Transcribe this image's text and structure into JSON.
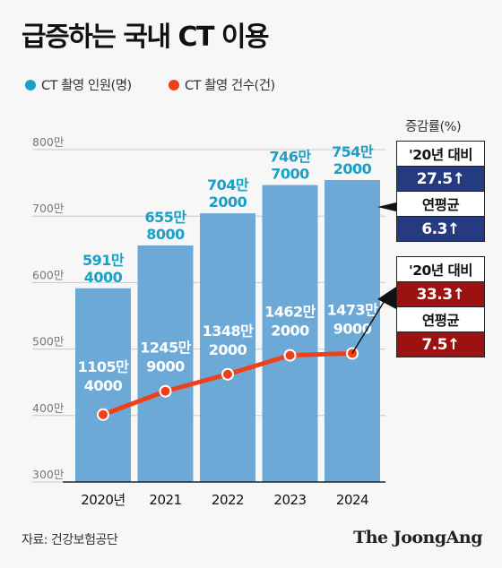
{
  "title": "급증하는 국내 CT 이용",
  "legend": [
    {
      "label": "CT 촬영 인원(명)",
      "color": "#1aa0c8"
    },
    {
      "label": "CT 촬영 건수(건)",
      "color": "#f0401a"
    }
  ],
  "rate_header": "증감률(%)",
  "boxes": {
    "people": {
      "label1": "'20년 대비",
      "value1": "27.5↑",
      "label2": "연평균",
      "value2": "6.3↑"
    },
    "exams": {
      "label1": "'20년 대비",
      "value1": "33.3↑",
      "label2": "연평균",
      "value2": "7.5↑"
    }
  },
  "source": "자료: 건강보험공단",
  "brand": "The JoongAng",
  "chart_data": {
    "type": "bar",
    "categories": [
      "2020년",
      "2021",
      "2022",
      "2023",
      "2024"
    ],
    "ylim": [
      3000000,
      8000000
    ],
    "yticks": [
      {
        "value": 8000000,
        "label": "800만"
      },
      {
        "value": 7000000,
        "label": "700만"
      },
      {
        "value": 6000000,
        "label": "600만"
      },
      {
        "value": 5000000,
        "label": "500만"
      },
      {
        "value": 4000000,
        "label": "400만"
      },
      {
        "value": 3000000,
        "label": "300만"
      }
    ],
    "series": [
      {
        "name": "CT 촬영 인원(명)",
        "type": "bar",
        "color": "#6da9d6",
        "label_color": "#1aa0c8",
        "values": [
          5914000,
          6558000,
          7042000,
          7467000,
          7542000
        ],
        "labels": [
          [
            "591만",
            "4000"
          ],
          [
            "655만",
            "8000"
          ],
          [
            "704만",
            "2000"
          ],
          [
            "746만",
            "7000"
          ],
          [
            "754만",
            "2000"
          ]
        ]
      },
      {
        "name": "CT 촬영 건수(건)",
        "type": "line",
        "color": "#f0401a",
        "values": [
          11054000,
          12459000,
          13482000,
          14622000,
          14739000
        ],
        "line_ylim": [
          7000000,
          27000000
        ],
        "labels": [
          [
            "1105만",
            "4000"
          ],
          [
            "1245만",
            "9000"
          ],
          [
            "1348만",
            "2000"
          ],
          [
            "1462만",
            "2000"
          ],
          [
            "1473만",
            "9000"
          ]
        ]
      }
    ]
  }
}
